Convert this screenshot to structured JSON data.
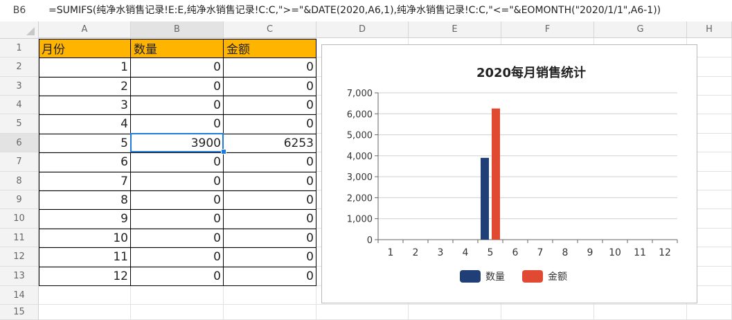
{
  "formula_bar": {
    "name_box": "B6",
    "formula": "=SUMIFS(纯净水销售记录!E:E,纯净水销售记录!C:C,\">=\"&DATE(2020,A6,1),纯净水销售记录!C:C,\"<=\"&EOMONTH(\"2020/1/1\",A6-1))"
  },
  "columns": [
    "A",
    "B",
    "C",
    "D",
    "E",
    "F",
    "G",
    "H"
  ],
  "rows": [
    "1",
    "2",
    "3",
    "4",
    "5",
    "6",
    "7",
    "8",
    "9",
    "10",
    "11",
    "12",
    "13",
    "14",
    "15"
  ],
  "table": {
    "headers": [
      "月份",
      "数量",
      "金额"
    ],
    "data": [
      [
        "1",
        "0",
        "0"
      ],
      [
        "2",
        "0",
        "0"
      ],
      [
        "3",
        "0",
        "0"
      ],
      [
        "4",
        "0",
        "0"
      ],
      [
        "5",
        "3900",
        "6253"
      ],
      [
        "6",
        "0",
        "0"
      ],
      [
        "7",
        "0",
        "0"
      ],
      [
        "8",
        "0",
        "0"
      ],
      [
        "9",
        "0",
        "0"
      ],
      [
        "10",
        "0",
        "0"
      ],
      [
        "11",
        "0",
        "0"
      ],
      [
        "12",
        "0",
        "0"
      ]
    ]
  },
  "colors": {
    "header_fill": "#ffb400",
    "selection": "#1e7bd9",
    "series_1": "#1f3f76",
    "series_2": "#e04a33"
  },
  "chart_data": {
    "type": "bar",
    "title": "2020每月销售统计",
    "categories": [
      "1",
      "2",
      "3",
      "4",
      "5",
      "6",
      "7",
      "8",
      "9",
      "10",
      "11",
      "12"
    ],
    "series": [
      {
        "name": "数量",
        "values": [
          0,
          0,
          0,
          0,
          3900,
          0,
          0,
          0,
          0,
          0,
          0,
          0
        ]
      },
      {
        "name": "金额",
        "values": [
          0,
          0,
          0,
          0,
          6253,
          0,
          0,
          0,
          0,
          0,
          0,
          0
        ]
      }
    ],
    "ylim": [
      0,
      7000
    ],
    "yticks": [
      "0",
      "1,000",
      "2,000",
      "3,000",
      "4,000",
      "5,000",
      "6,000",
      "7,000"
    ],
    "grid": true,
    "legend": "bottom"
  }
}
